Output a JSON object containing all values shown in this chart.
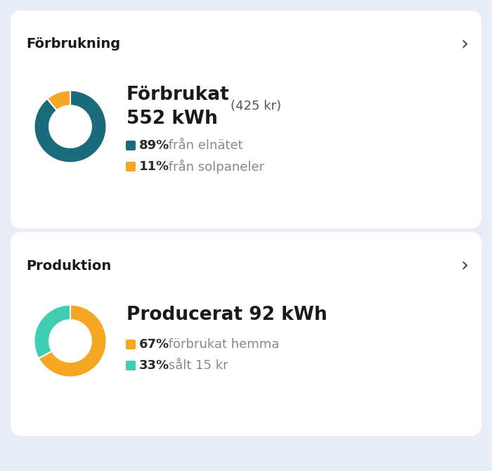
{
  "bg_color": "#e8edf5",
  "card_color": "#ffffff",
  "card1": {
    "section_title": "Förbrukning",
    "donut_values": [
      89,
      11
    ],
    "donut_colors": [
      "#1a6b7c",
      "#f5a623"
    ],
    "title_line1": "Förbrukat",
    "title_line1_extra": "(425 kr)",
    "title_line2": "552 kWh",
    "legend": [
      {
        "pct": "89%",
        "label": " från elnätet",
        "color": "#1a6b7c"
      },
      {
        "pct": "11%",
        "label": " från solpaneler",
        "color": "#f5a623"
      }
    ]
  },
  "card2": {
    "section_title": "Produktion",
    "donut_values": [
      67,
      33
    ],
    "donut_colors": [
      "#f5a623",
      "#3ecfb2"
    ],
    "title_line1": "Producerat 92 kWh",
    "legend": [
      {
        "pct": "67%",
        "label": " förbrukat hemma",
        "color": "#f5a623"
      },
      {
        "pct": "33%",
        "label": " sålt 15 kr",
        "color": "#3ecfb2"
      }
    ]
  },
  "chevron": "›",
  "section_title_fontsize": 14,
  "main_title_fontsize": 19,
  "sub_title_fontsize": 13,
  "legend_pct_fontsize": 13,
  "legend_label_fontsize": 13
}
